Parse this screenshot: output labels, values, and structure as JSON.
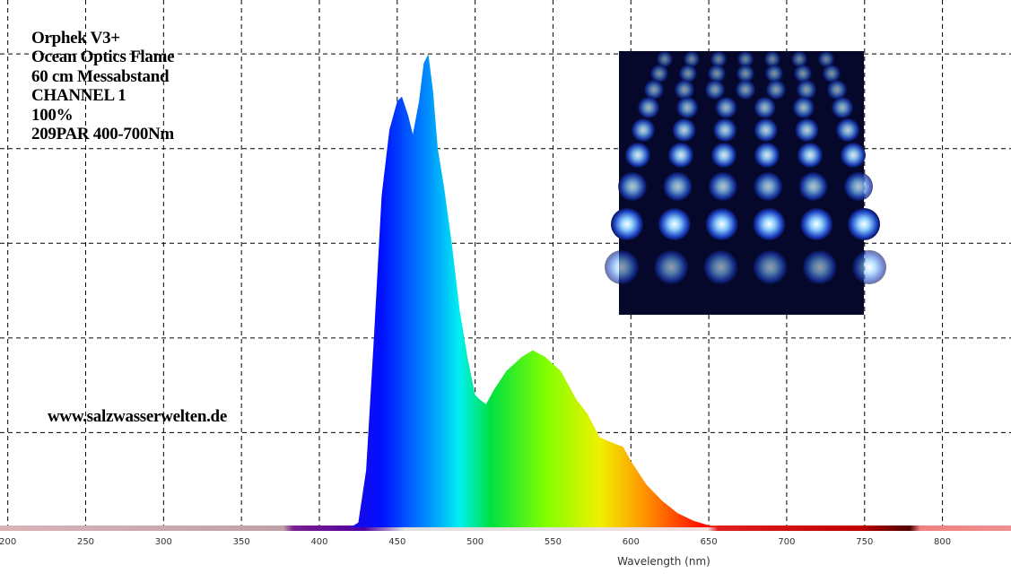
{
  "chart_data": {
    "type": "area",
    "annotations": [
      "Orphek V3+",
      "Ocean Optics Flame",
      "60 cm Messabstand",
      "CHANNEL 1",
      "100%",
      "209PAR 400-700Nm"
    ],
    "watermark": "www.salzwasserwelten.de",
    "xlabel": "Wavelength (nm)",
    "x": [
      420,
      425,
      430,
      435,
      440,
      445,
      450,
      453,
      457,
      460,
      464,
      467,
      470,
      473,
      476,
      480,
      485,
      490,
      495,
      500,
      503,
      507,
      512,
      520,
      530,
      537,
      545,
      555,
      565,
      572,
      580,
      590,
      595,
      600,
      610,
      620,
      630,
      640,
      650,
      660
    ],
    "series": [
      {
        "values": [
          0,
          0.05,
          0.6,
          2.0,
          3.5,
          4.2,
          4.5,
          4.55,
          4.35,
          4.15,
          4.5,
          4.9,
          5.0,
          4.6,
          4.0,
          3.6,
          3.0,
          2.3,
          1.8,
          1.4,
          1.35,
          1.3,
          1.45,
          1.65,
          1.8,
          1.87,
          1.8,
          1.65,
          1.35,
          1.2,
          0.95,
          0.88,
          0.85,
          0.7,
          0.45,
          0.28,
          0.15,
          0.07,
          0.02,
          0
        ],
        "colormap": [
          [
            400,
            "#3a00c8"
          ],
          [
            440,
            "#0010ff"
          ],
          [
            470,
            "#0090ff"
          ],
          [
            490,
            "#00f0f0"
          ],
          [
            510,
            "#00e040"
          ],
          [
            545,
            "#80ff00"
          ],
          [
            580,
            "#f0f000"
          ],
          [
            610,
            "#ff9000"
          ],
          [
            645,
            "#ff1000"
          ],
          [
            700,
            "#d00000"
          ]
        ]
      }
    ],
    "xlim": [
      195,
      844
    ],
    "ylim": [
      0,
      5.57
    ],
    "xticks": [
      200,
      250,
      300,
      350,
      400,
      450,
      500,
      550,
      600,
      650,
      700,
      750,
      800
    ],
    "yticks": [
      1,
      2,
      3,
      4,
      5
    ],
    "grid": true
  }
}
